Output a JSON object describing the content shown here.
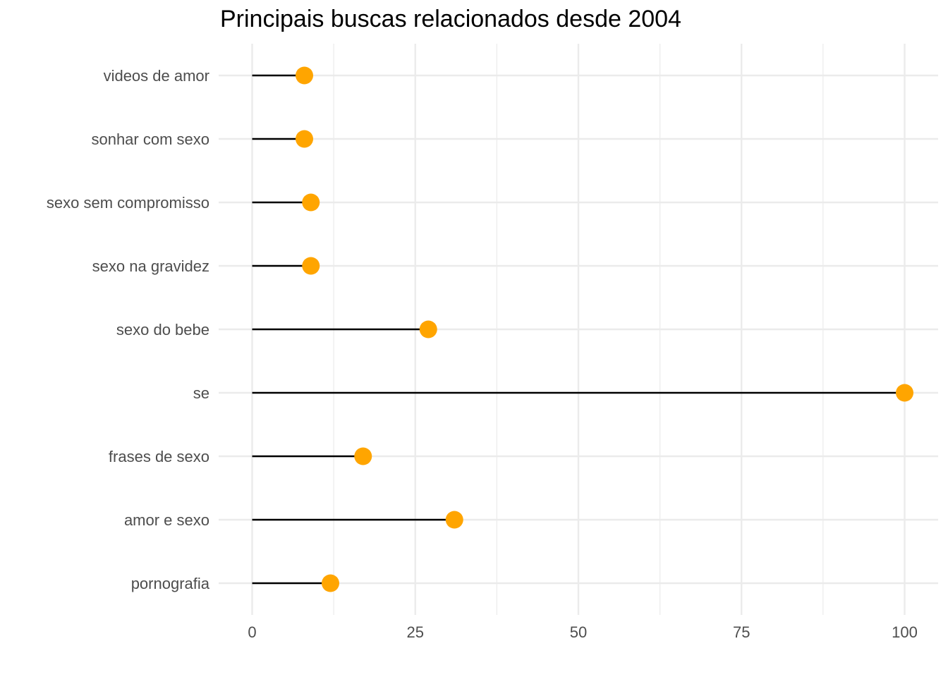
{
  "chart_data": {
    "type": "lollipop",
    "title": "Principais buscas relacionados desde 2004",
    "xlabel": "",
    "ylabel": "",
    "xlim": [
      0,
      100
    ],
    "x_ticks": [
      0,
      25,
      50,
      75,
      100
    ],
    "categories": [
      "pornografia",
      "amor e sexo",
      "frases de sexo",
      "se",
      "sexo do bebe",
      "sexo na gravidez",
      "sexo sem compromisso",
      "sonhar com sexo",
      "videos de amor"
    ],
    "values": [
      12,
      31,
      17,
      100,
      27,
      9,
      9,
      8,
      8
    ],
    "grid": true,
    "legend": "none",
    "colors": {
      "point": "#FFA500",
      "stem": "#000000",
      "grid": "#ebebeb",
      "text": "#4d4d4d"
    }
  }
}
